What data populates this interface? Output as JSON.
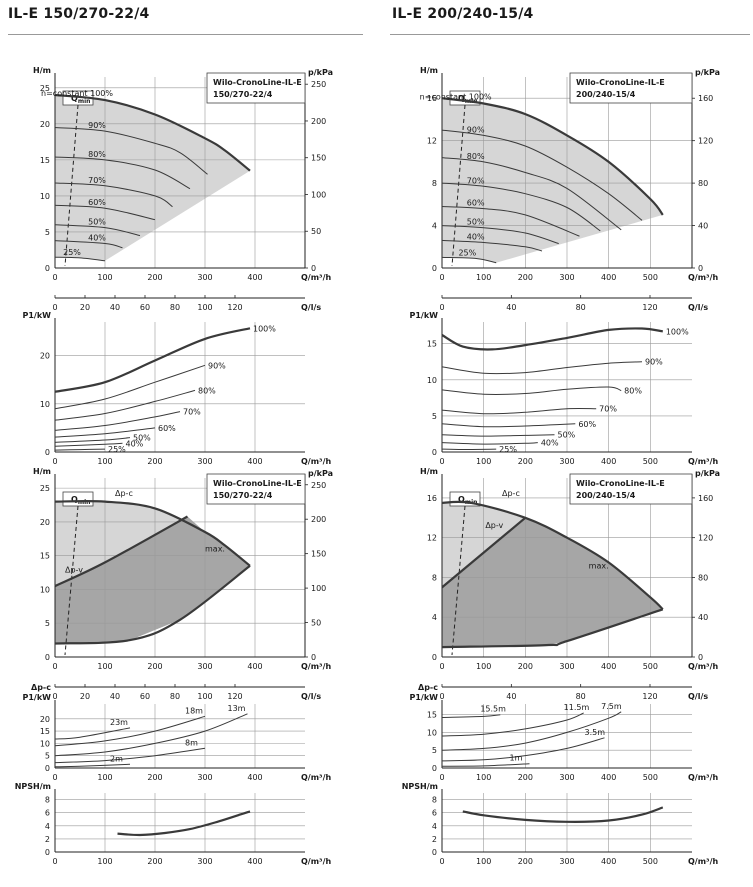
{
  "titles": {
    "left": "IL-E 150/270-22/4",
    "right": "IL-E 200/240-15/4"
  },
  "colors": {
    "fill_light": "#d6d6d6",
    "fill_dark": "#a6a6a6",
    "curve": "#3a3a3a",
    "grid": "#9a9a9a"
  },
  "chart_data": [
    {
      "id": "L1",
      "type": "line",
      "title": "Wilo-CronoLine-IL-E 150/270-22/4",
      "xlabel": "Q/m³/h",
      "ylabel": "H/m",
      "y2label": "p/kPa",
      "x2label": "Q/l/s",
      "xlim": [
        0,
        500
      ],
      "ylim": [
        0,
        26.5
      ],
      "x_ticks": [
        "0",
        "100",
        "200",
        "300",
        "400"
      ],
      "y_ticks": [
        "0",
        "5",
        "10",
        "15",
        "20",
        "25"
      ],
      "y2_ticks": [
        "0",
        "50",
        "100",
        "150",
        "200",
        "250"
      ],
      "x2_ticks": [
        "0",
        "20",
        "40",
        "60",
        "80",
        "100",
        "120"
      ],
      "qmin_label": "Q",
      "qmin_sub": "min",
      "series": [
        {
          "name": "n=constant 100%",
          "x": [
            0,
            100,
            200,
            300,
            340,
            390
          ],
          "y": [
            24,
            23.3,
            21.3,
            18,
            16.3,
            13.5
          ]
        },
        {
          "name": "90%",
          "x": [
            0,
            100,
            200,
            250,
            305
          ],
          "y": [
            19.5,
            19,
            17.3,
            16,
            13
          ]
        },
        {
          "name": "80%",
          "x": [
            0,
            100,
            200,
            270
          ],
          "y": [
            15.4,
            15,
            13.6,
            11
          ]
        },
        {
          "name": "70%",
          "x": [
            0,
            100,
            200,
            235
          ],
          "y": [
            11.8,
            11.4,
            10,
            8.5
          ]
        },
        {
          "name": "60%",
          "x": [
            0,
            100,
            200
          ],
          "y": [
            8.7,
            8.3,
            6.7
          ]
        },
        {
          "name": "50%",
          "x": [
            0,
            100,
            170
          ],
          "y": [
            6,
            5.6,
            4.5
          ]
        },
        {
          "name": "40%",
          "x": [
            0,
            100,
            135
          ],
          "y": [
            3.8,
            3.4,
            2.8
          ]
        },
        {
          "name": "25%",
          "x": [
            0,
            50,
            100
          ],
          "y": [
            1.5,
            1.4,
            1
          ]
        }
      ]
    },
    {
      "id": "L2",
      "type": "line",
      "xlabel": "Q/m³/h",
      "ylabel": "P1/kW",
      "xlim": [
        0,
        500
      ],
      "ylim": [
        0,
        27
      ],
      "x_ticks": [
        "0",
        "100",
        "200",
        "300",
        "400"
      ],
      "y_ticks": [
        "0",
        "10",
        "20"
      ],
      "series": [
        {
          "name": "100%",
          "x": [
            0,
            100,
            200,
            300,
            390
          ],
          "y": [
            12.5,
            14.5,
            19,
            23.5,
            25.7
          ]
        },
        {
          "name": "90%",
          "x": [
            0,
            100,
            200,
            300
          ],
          "y": [
            9,
            11,
            14.5,
            18
          ]
        },
        {
          "name": "80%",
          "x": [
            0,
            100,
            200,
            280
          ],
          "y": [
            6.6,
            8,
            10.5,
            12.8
          ]
        },
        {
          "name": "70%",
          "x": [
            0,
            100,
            200,
            250
          ],
          "y": [
            4.5,
            5.5,
            7.3,
            8.4
          ]
        },
        {
          "name": "60%",
          "x": [
            0,
            100,
            200
          ],
          "y": [
            3.1,
            3.8,
            5
          ]
        },
        {
          "name": "50%",
          "x": [
            0,
            100,
            150
          ],
          "y": [
            2,
            2.5,
            3
          ]
        },
        {
          "name": "40%",
          "x": [
            0,
            100,
            135
          ],
          "y": [
            1.2,
            1.6,
            1.8
          ]
        },
        {
          "name": "25%",
          "x": [
            0,
            50,
            100
          ],
          "y": [
            0.4,
            0.5,
            0.6
          ]
        }
      ]
    },
    {
      "id": "L3",
      "type": "area",
      "title": "Wilo-CronoLine-IL-E 150/270-22/4",
      "xlabel": "Q/m³/h",
      "ylabel": "H/m",
      "y2label": "p/kPa",
      "x2label": "Q/l/s",
      "xlim": [
        0,
        500
      ],
      "ylim": [
        0,
        26.5
      ],
      "x_ticks": [
        "0",
        "100",
        "200",
        "300",
        "400"
      ],
      "y_ticks": [
        "0",
        "5",
        "10",
        "15",
        "20",
        "25"
      ],
      "y2_ticks": [
        "0",
        "50",
        "100",
        "150",
        "200",
        "250"
      ],
      "x2_ticks": [
        "0",
        "20",
        "40",
        "60",
        "80",
        "100",
        "120"
      ],
      "labels": {
        "dpc": "Δp-c",
        "dpv": "Δp-v",
        "max": "max."
      },
      "qmin_label": "Q",
      "qmin_sub": "min",
      "series": [
        {
          "name": "max.",
          "x": [
            0,
            100,
            200,
            300,
            340,
            390
          ],
          "y": [
            23,
            23,
            22,
            18.5,
            16.5,
            13.5
          ]
        },
        {
          "name": "Δp-v",
          "x": [
            0,
            100,
            265
          ],
          "y": [
            10.5,
            14,
            20.8
          ]
        },
        {
          "name": "min",
          "x": [
            0,
            150,
            250,
            390
          ],
          "y": [
            2,
            2.5,
            5.5,
            13.5
          ]
        }
      ]
    },
    {
      "id": "L4",
      "type": "line",
      "xlabel": "Q/m³/h",
      "ylabel": "P1/kW",
      "ylabel2": "Δp-c",
      "xlim": [
        0,
        500
      ],
      "ylim": [
        0,
        26
      ],
      "x_ticks": [
        "0",
        "100",
        "200",
        "300",
        "400"
      ],
      "y_ticks": [
        "0",
        "5",
        "10",
        "15",
        "20"
      ],
      "series": [
        {
          "name": "23m",
          "x": [
            0,
            50,
            150
          ],
          "y": [
            11.8,
            12.5,
            16.3
          ]
        },
        {
          "name": "18m",
          "x": [
            0,
            100,
            200,
            300
          ],
          "y": [
            9,
            11,
            15,
            21
          ]
        },
        {
          "name": "13m",
          "x": [
            0,
            100,
            200,
            300,
            385
          ],
          "y": [
            5,
            6.5,
            10,
            15,
            22
          ]
        },
        {
          "name": "8m",
          "x": [
            0,
            100,
            200,
            300
          ],
          "y": [
            2.2,
            3,
            5,
            8
          ]
        },
        {
          "name": "2m",
          "x": [
            0,
            50,
            150
          ],
          "y": [
            0.5,
            0.7,
            1.5
          ]
        }
      ]
    },
    {
      "id": "L5",
      "type": "line",
      "xlabel": "Q/m³/h",
      "ylabel": "NPSH/m",
      "xlim": [
        0,
        500
      ],
      "ylim": [
        0,
        9
      ],
      "x_ticks": [
        "0",
        "100",
        "200",
        "300",
        "400"
      ],
      "y_ticks": [
        "0",
        "2",
        "4",
        "6",
        "8"
      ],
      "series": [
        {
          "name": "NPSH",
          "x": [
            125,
            170,
            220,
            270,
            320,
            370,
            390
          ],
          "y": [
            2.8,
            2.6,
            2.9,
            3.5,
            4.5,
            5.7,
            6.2
          ]
        }
      ]
    },
    {
      "id": "R1",
      "type": "line",
      "title": "Wilo-CronoLine-IL-E 200/240-15/4",
      "xlabel": "Q/m³/h",
      "ylabel": "H/m",
      "y2label": "p/kPa",
      "x2label": "Q/l/s",
      "xlim": [
        0,
        600
      ],
      "ylim": [
        0,
        18
      ],
      "x_ticks": [
        "0",
        "100",
        "200",
        "300",
        "400",
        "500"
      ],
      "y_ticks": [
        "0",
        "4",
        "8",
        "12",
        "16"
      ],
      "y2_ticks": [
        "0",
        "40",
        "80",
        "120",
        "160"
      ],
      "x2_ticks": [
        "0",
        "40",
        "80",
        "120"
      ],
      "qmin_label": "Q",
      "qmin_sub": "min",
      "series": [
        {
          "name": "n=constant 100%",
          "x": [
            0,
            100,
            200,
            300,
            400,
            500,
            530
          ],
          "y": [
            16,
            15.5,
            14.5,
            12.5,
            10,
            6.5,
            5
          ]
        },
        {
          "name": "90%",
          "x": [
            0,
            100,
            200,
            300,
            400,
            480
          ],
          "y": [
            13,
            12.5,
            11.5,
            9.5,
            7,
            4.5
          ]
        },
        {
          "name": "80%",
          "x": [
            0,
            100,
            200,
            300,
            430
          ],
          "y": [
            10.4,
            10,
            9,
            7.5,
            3.6
          ]
        },
        {
          "name": "70%",
          "x": [
            0,
            100,
            200,
            300,
            380
          ],
          "y": [
            8,
            7.7,
            7,
            5.7,
            3.5
          ]
        },
        {
          "name": "60%",
          "x": [
            0,
            100,
            200,
            330
          ],
          "y": [
            5.8,
            5.6,
            5,
            3
          ]
        },
        {
          "name": "50%",
          "x": [
            0,
            100,
            200,
            280
          ],
          "y": [
            4,
            3.8,
            3.3,
            2.3
          ]
        },
        {
          "name": "40%",
          "x": [
            0,
            100,
            200,
            240
          ],
          "y": [
            2.6,
            2.4,
            2,
            1.6
          ]
        },
        {
          "name": "25%",
          "x": [
            0,
            80,
            130
          ],
          "y": [
            1,
            0.9,
            0.5
          ]
        }
      ]
    },
    {
      "id": "R2",
      "type": "line",
      "xlabel": "Q/m³/h",
      "ylabel": "P1/kW",
      "xlim": [
        0,
        600
      ],
      "ylim": [
        0,
        18
      ],
      "x_ticks": [
        "0",
        "100",
        "200",
        "300",
        "400",
        "500"
      ],
      "y_ticks": [
        "0",
        "5",
        "10",
        "15"
      ],
      "series": [
        {
          "name": "100%",
          "x": [
            0,
            50,
            120,
            200,
            300,
            400,
            480,
            530
          ],
          "y": [
            16.2,
            14.6,
            14.2,
            14.8,
            15.8,
            16.9,
            17.1,
            16.7
          ]
        },
        {
          "name": "90%",
          "x": [
            0,
            100,
            200,
            300,
            400,
            480
          ],
          "y": [
            11.8,
            10.9,
            11,
            11.7,
            12.3,
            12.5
          ]
        },
        {
          "name": "80%",
          "x": [
            0,
            100,
            200,
            300,
            400,
            430
          ],
          "y": [
            8.6,
            8,
            8.1,
            8.7,
            9,
            8.5
          ]
        },
        {
          "name": "70%",
          "x": [
            0,
            100,
            200,
            300,
            370
          ],
          "y": [
            5.8,
            5.3,
            5.5,
            6,
            6
          ]
        },
        {
          "name": "60%",
          "x": [
            0,
            100,
            200,
            320
          ],
          "y": [
            3.9,
            3.5,
            3.6,
            3.9
          ]
        },
        {
          "name": "50%",
          "x": [
            0,
            100,
            200,
            270
          ],
          "y": [
            2.4,
            2.2,
            2.3,
            2.4
          ]
        },
        {
          "name": "40%",
          "x": [
            0,
            100,
            200,
            230
          ],
          "y": [
            1.3,
            1.1,
            1.2,
            1.3
          ]
        },
        {
          "name": "25%",
          "x": [
            0,
            50,
            130
          ],
          "y": [
            0.4,
            0.35,
            0.4
          ]
        }
      ]
    },
    {
      "id": "R3",
      "type": "area",
      "title": "Wilo-CronoLine-IL-E 200/240-15/4",
      "xlabel": "Q/m³/h",
      "ylabel": "H/m",
      "y2label": "p/kPa",
      "x2label": "Q/l/s",
      "xlim": [
        0,
        600
      ],
      "ylim": [
        0,
        18
      ],
      "x_ticks": [
        "0",
        "100",
        "200",
        "300",
        "400",
        "500"
      ],
      "y_ticks": [
        "0",
        "4",
        "8",
        "12",
        "16"
      ],
      "y2_ticks": [
        "0",
        "40",
        "80",
        "120",
        "160"
      ],
      "x2_ticks": [
        "0",
        "40",
        "80",
        "120"
      ],
      "labels": {
        "dpc": "Δp-c",
        "dpv": "Δp-v",
        "max": "max."
      },
      "qmin_label": "Q",
      "qmin_sub": "min",
      "series": [
        {
          "name": "max.",
          "x": [
            0,
            70,
            200,
            300,
            400,
            500,
            530
          ],
          "y": [
            15.5,
            15.5,
            14,
            12,
            9.5,
            6,
            4.8
          ]
        },
        {
          "name": "Δp-v",
          "x": [
            0,
            200
          ],
          "y": [
            7,
            14
          ]
        },
        {
          "name": "min",
          "x": [
            0,
            250,
            300,
            530
          ],
          "y": [
            1,
            1.2,
            1.6,
            4.8
          ]
        }
      ]
    },
    {
      "id": "R4",
      "type": "line",
      "xlabel": "Q/m³/h",
      "ylabel": "P1/kW",
      "ylabel2": "Δp-c",
      "xlim": [
        0,
        600
      ],
      "ylim": [
        0,
        18
      ],
      "x_ticks": [
        "0",
        "100",
        "200",
        "300",
        "400",
        "500"
      ],
      "y_ticks": [
        "0",
        "5",
        "10",
        "15"
      ],
      "series": [
        {
          "name": "15.5m",
          "x": [
            0,
            100,
            140
          ],
          "y": [
            14.2,
            14.5,
            15
          ]
        },
        {
          "name": "11.5m",
          "x": [
            0,
            100,
            200,
            300,
            340
          ],
          "y": [
            9,
            9.5,
            11,
            13.5,
            15.5
          ]
        },
        {
          "name": "7.5m",
          "x": [
            0,
            100,
            200,
            300,
            400,
            430
          ],
          "y": [
            5,
            5.5,
            7,
            10,
            14,
            15.8
          ]
        },
        {
          "name": "3.5m",
          "x": [
            0,
            100,
            200,
            300,
            390
          ],
          "y": [
            2,
            2.3,
            3.5,
            5.5,
            8.5
          ]
        },
        {
          "name": "1m",
          "x": [
            0,
            100,
            210
          ],
          "y": [
            0.5,
            0.6,
            1.2
          ]
        }
      ]
    },
    {
      "id": "R5",
      "type": "line",
      "xlabel": "Q/m³/h",
      "ylabel": "NPSH/m",
      "xlim": [
        0,
        600
      ],
      "ylim": [
        0,
        9
      ],
      "x_ticks": [
        "0",
        "100",
        "200",
        "300",
        "400",
        "500"
      ],
      "y_ticks": [
        "0",
        "2",
        "4",
        "6",
        "8"
      ],
      "series": [
        {
          "name": "NPSH",
          "x": [
            50,
            100,
            200,
            300,
            400,
            480,
            530
          ],
          "y": [
            6.2,
            5.6,
            4.9,
            4.6,
            4.8,
            5.7,
            6.8
          ]
        }
      ]
    }
  ]
}
